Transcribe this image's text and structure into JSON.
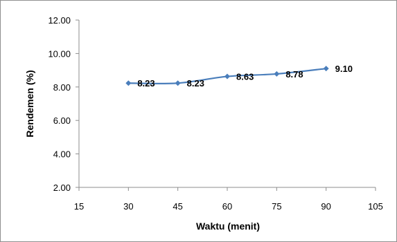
{
  "chart_data": {
    "type": "line",
    "title": "",
    "xlabel": "Waktu (menit)",
    "ylabel": "Rendemen (%)",
    "xlim": [
      15,
      105
    ],
    "ylim": [
      2.0,
      12.0
    ],
    "x_ticks": [
      "15",
      "30",
      "45",
      "60",
      "75",
      "90",
      "105"
    ],
    "y_ticks": [
      "2.00",
      "4.00",
      "6.00",
      "8.00",
      "10.00",
      "12.00"
    ],
    "grid": false,
    "legend": "none",
    "series": [
      {
        "color": "#4a7ebb",
        "x": [
          30,
          45,
          60,
          75,
          90
        ],
        "values": [
          8.23,
          8.23,
          8.63,
          8.78,
          9.1
        ],
        "labels": [
          "8.23",
          "8.23",
          "8.63",
          "8.78",
          "9.10"
        ]
      }
    ]
  }
}
